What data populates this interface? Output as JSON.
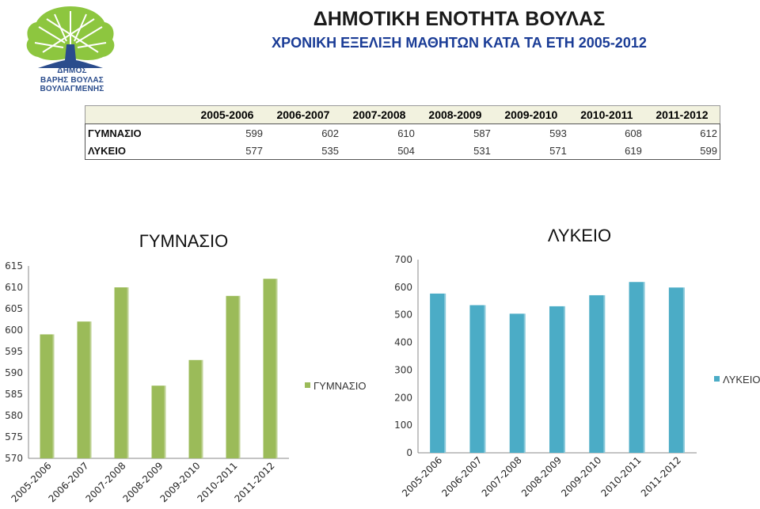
{
  "logo": {
    "line1": "ΔΗΜΟΣ",
    "line2": "ΒΑΡΗΣ ΒΟΥΛΑΣ ΒΟΥΛΙΑΓΜΕΝΗΣ",
    "tree_color": "#8dc63f",
    "trunk_color": "#2a4c8c"
  },
  "header": {
    "title": "ΔΗΜΟΤΙΚΗ ΕΝΟΤΗΤΑ ΒΟΥΛΑΣ",
    "subtitle": "ΧΡΟΝΙΚΗ ΕΞΕΛΙΞΗ ΜΑΘΗΤΩΝ ΚΑΤΑ ΤΑ ΕΤΗ 2005-2012"
  },
  "table": {
    "columns": [
      "2005-2006",
      "2006-2007",
      "2007-2008",
      "2008-2009",
      "2009-2010",
      "2010-2011",
      "2011-2012"
    ],
    "rows": [
      {
        "label": "ΓΥΜΝΑΣΙΟ",
        "values": [
          599,
          602,
          610,
          587,
          593,
          608,
          612
        ]
      },
      {
        "label": "ΛΥΚΕΙΟ",
        "values": [
          577,
          535,
          504,
          531,
          571,
          619,
          599
        ]
      }
    ]
  },
  "chart_data": [
    {
      "type": "bar",
      "title": "ΓΥΜΝΑΣΙΟ",
      "categories": [
        "2005-2006",
        "2006-2007",
        "2007-2008",
        "2008-2009",
        "2009-2010",
        "2010-2011",
        "2011-2012"
      ],
      "series": [
        {
          "name": "ΓΥΜΝΑΣΙΟ",
          "values": [
            599,
            602,
            610,
            587,
            593,
            608,
            612
          ],
          "color": "#9bbb59"
        }
      ],
      "ylim": [
        570,
        615
      ],
      "yticks": [
        570,
        575,
        580,
        585,
        590,
        595,
        600,
        605,
        610,
        615
      ],
      "legend": "right",
      "grid": false
    },
    {
      "type": "bar",
      "title": "ΛΥΚΕΙΟ",
      "categories": [
        "2005-2006",
        "2006-2007",
        "2007-2008",
        "2008-2009",
        "2009-2010",
        "2010-2011",
        "2011-2012"
      ],
      "series": [
        {
          "name": "ΛΥΚΕΙΟ",
          "values": [
            577,
            535,
            504,
            531,
            571,
            619,
            599
          ],
          "color": "#4bacc6"
        }
      ],
      "ylim": [
        0,
        700
      ],
      "yticks": [
        0,
        100,
        200,
        300,
        400,
        500,
        600,
        700
      ],
      "legend": "right",
      "grid": false
    }
  ]
}
